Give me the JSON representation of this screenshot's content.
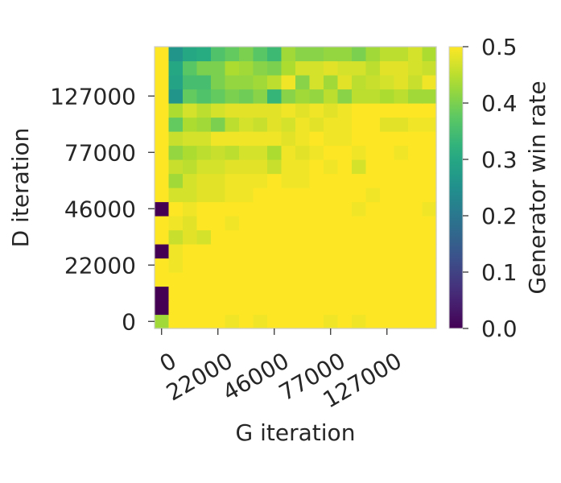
{
  "chart_data": {
    "type": "heatmap",
    "title": "",
    "xlabel": "G iteration",
    "ylabel": "D iteration",
    "colorbar_label": "Generator win rate",
    "colormap": "viridis",
    "vmin": 0.0,
    "vmax": 0.5,
    "colorbar_ticks": [
      "0.0",
      "0.1",
      "0.2",
      "0.3",
      "0.4",
      "0.5"
    ],
    "x_tick_labels": [
      "0",
      "22000",
      "46000",
      "77000",
      "127000"
    ],
    "x_tick_indices": [
      0,
      4,
      8,
      12,
      16
    ],
    "y_tick_labels": [
      "0",
      "22000",
      "46000",
      "77000",
      "127000"
    ],
    "y_tick_indices": [
      0,
      4,
      8,
      12,
      16
    ],
    "grid": false,
    "rows_bottom_to_top": [
      [
        0.43,
        0.5,
        0.5,
        0.5,
        0.5,
        0.49,
        0.5,
        0.49,
        0.5,
        0.5,
        0.5,
        0.5,
        0.49,
        0.5,
        0.49,
        0.5,
        0.5,
        0.5,
        0.5,
        0.5
      ],
      [
        0.0,
        0.5,
        0.5,
        0.5,
        0.5,
        0.5,
        0.5,
        0.5,
        0.5,
        0.5,
        0.5,
        0.5,
        0.5,
        0.5,
        0.5,
        0.5,
        0.5,
        0.5,
        0.5,
        0.5
      ],
      [
        0.0,
        0.5,
        0.5,
        0.5,
        0.5,
        0.5,
        0.5,
        0.5,
        0.5,
        0.5,
        0.5,
        0.5,
        0.5,
        0.5,
        0.5,
        0.5,
        0.5,
        0.5,
        0.5,
        0.5
      ],
      [
        0.5,
        0.5,
        0.5,
        0.5,
        0.5,
        0.5,
        0.5,
        0.5,
        0.5,
        0.5,
        0.5,
        0.5,
        0.5,
        0.5,
        0.5,
        0.5,
        0.5,
        0.5,
        0.5,
        0.5
      ],
      [
        0.5,
        0.49,
        0.5,
        0.5,
        0.5,
        0.5,
        0.5,
        0.5,
        0.5,
        0.5,
        0.5,
        0.5,
        0.5,
        0.5,
        0.5,
        0.5,
        0.5,
        0.5,
        0.5,
        0.5
      ],
      [
        0.0,
        0.49,
        0.5,
        0.5,
        0.5,
        0.5,
        0.5,
        0.5,
        0.5,
        0.5,
        0.5,
        0.5,
        0.5,
        0.5,
        0.5,
        0.5,
        0.5,
        0.5,
        0.5,
        0.5
      ],
      [
        0.5,
        0.46,
        0.48,
        0.47,
        0.5,
        0.5,
        0.5,
        0.5,
        0.5,
        0.5,
        0.5,
        0.5,
        0.5,
        0.5,
        0.5,
        0.5,
        0.5,
        0.5,
        0.5,
        0.5
      ],
      [
        0.5,
        0.49,
        0.48,
        0.5,
        0.5,
        0.49,
        0.5,
        0.5,
        0.5,
        0.5,
        0.5,
        0.5,
        0.5,
        0.5,
        0.5,
        0.5,
        0.5,
        0.5,
        0.5,
        0.5
      ],
      [
        0.0,
        0.5,
        0.49,
        0.5,
        0.5,
        0.5,
        0.5,
        0.5,
        0.5,
        0.5,
        0.5,
        0.5,
        0.5,
        0.5,
        0.49,
        0.5,
        0.5,
        0.5,
        0.5,
        0.49
      ],
      [
        0.5,
        0.47,
        0.47,
        0.48,
        0.48,
        0.49,
        0.49,
        0.5,
        0.5,
        0.5,
        0.5,
        0.5,
        0.5,
        0.5,
        0.5,
        0.49,
        0.5,
        0.5,
        0.5,
        0.5
      ],
      [
        0.5,
        0.43,
        0.47,
        0.48,
        0.48,
        0.49,
        0.49,
        0.49,
        0.5,
        0.49,
        0.49,
        0.5,
        0.5,
        0.5,
        0.5,
        0.5,
        0.5,
        0.5,
        0.5,
        0.5
      ],
      [
        0.5,
        0.46,
        0.45,
        0.47,
        0.47,
        0.48,
        0.48,
        0.48,
        0.46,
        0.49,
        0.49,
        0.5,
        0.49,
        0.5,
        0.47,
        0.5,
        0.5,
        0.5,
        0.5,
        0.5
      ],
      [
        0.5,
        0.42,
        0.44,
        0.45,
        0.46,
        0.45,
        0.47,
        0.47,
        0.44,
        0.49,
        0.48,
        0.49,
        0.5,
        0.5,
        0.49,
        0.5,
        0.5,
        0.49,
        0.5,
        0.5
      ],
      [
        0.5,
        0.46,
        0.47,
        0.47,
        0.49,
        0.49,
        0.49,
        0.49,
        0.49,
        0.48,
        0.49,
        0.5,
        0.49,
        0.49,
        0.5,
        0.5,
        0.5,
        0.5,
        0.5,
        0.5
      ],
      [
        0.5,
        0.38,
        0.44,
        0.43,
        0.4,
        0.45,
        0.47,
        0.46,
        0.48,
        0.47,
        0.49,
        0.48,
        0.49,
        0.49,
        0.5,
        0.5,
        0.48,
        0.48,
        0.49,
        0.49
      ],
      [
        0.5,
        0.44,
        0.47,
        0.45,
        0.47,
        0.48,
        0.48,
        0.48,
        0.48,
        0.49,
        0.48,
        0.49,
        0.48,
        0.49,
        0.5,
        0.5,
        0.5,
        0.5,
        0.5,
        0.5
      ],
      [
        0.5,
        0.26,
        0.38,
        0.36,
        0.38,
        0.4,
        0.39,
        0.41,
        0.33,
        0.41,
        0.43,
        0.42,
        0.45,
        0.41,
        0.45,
        0.45,
        0.44,
        0.45,
        0.43,
        0.43
      ],
      [
        0.5,
        0.29,
        0.35,
        0.35,
        0.4,
        0.42,
        0.42,
        0.43,
        0.45,
        0.49,
        0.41,
        0.47,
        0.43,
        0.48,
        0.45,
        0.46,
        0.47,
        0.48,
        0.46,
        0.49
      ],
      [
        0.5,
        0.3,
        0.37,
        0.4,
        0.4,
        0.44,
        0.43,
        0.41,
        0.4,
        0.44,
        0.47,
        0.47,
        0.48,
        0.47,
        0.47,
        0.45,
        0.48,
        0.48,
        0.47,
        0.46
      ],
      [
        0.5,
        0.26,
        0.3,
        0.31,
        0.36,
        0.38,
        0.4,
        0.37,
        0.34,
        0.43,
        0.41,
        0.41,
        0.42,
        0.42,
        0.4,
        0.43,
        0.45,
        0.45,
        0.47,
        0.44
      ]
    ]
  }
}
